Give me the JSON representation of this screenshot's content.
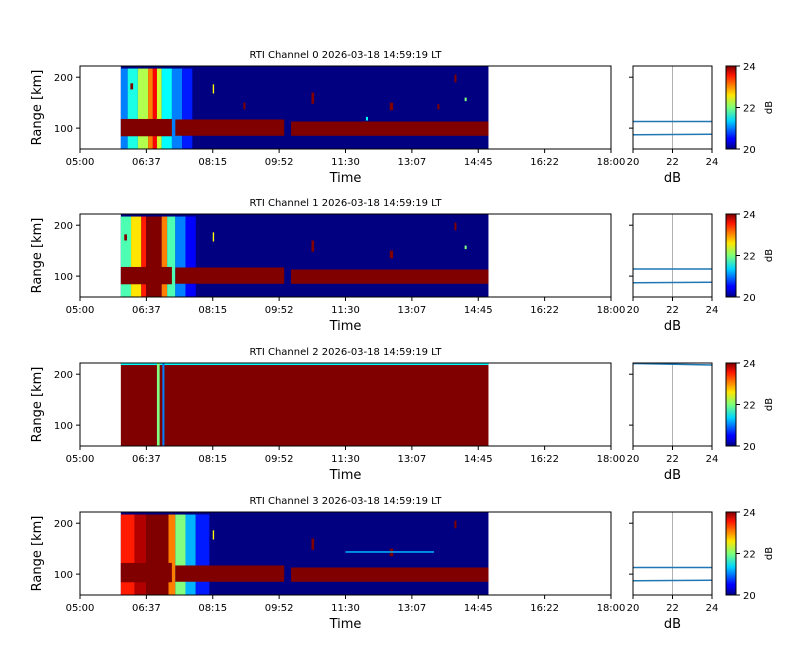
{
  "chart_data": {
    "type": "heatmap",
    "colormap": "jet",
    "clim": [
      20,
      24
    ],
    "background_color": "#ffffff",
    "x_ticks": [
      "05:00",
      "06:37",
      "08:15",
      "09:52",
      "11:30",
      "13:07",
      "14:45",
      "16:22",
      "18:00"
    ],
    "xlim": [
      "05:00",
      "18:00"
    ],
    "ylim": [
      59,
      222
    ],
    "y_ticks": [
      100,
      200
    ],
    "xlabel": "Time",
    "ylabel": "Range [km]",
    "profile_xlabel": "dB",
    "profile_xlim": [
      20,
      24
    ],
    "profile_x_ticks": [
      20,
      22,
      24
    ],
    "profile_grid_at": 22,
    "profile_line_color": "#1f77b4",
    "colorbar_ticks": [
      20,
      22,
      24
    ],
    "colorbar_label": "dB",
    "panels": [
      {
        "title": "RTI Channel 0 2026-03-18 14:59:19 LT",
        "data_extent": [
          "06:00",
          "15:00"
        ],
        "base_value": 20,
        "cells": [
          [
            "06:00",
            "06:10",
            59,
            217,
            21.0
          ],
          [
            "06:10",
            "06:25",
            59,
            217,
            21.6
          ],
          [
            "06:25",
            "06:40",
            59,
            217,
            22.2
          ],
          [
            "06:40",
            "06:47",
            59,
            217,
            23.0
          ],
          [
            "06:47",
            "06:53",
            59,
            217,
            23.5
          ],
          [
            "06:53",
            "07:00",
            59,
            217,
            22.3
          ],
          [
            "07:00",
            "07:15",
            59,
            217,
            21.5
          ],
          [
            "07:15",
            "07:30",
            59,
            217,
            21.0
          ],
          [
            "07:30",
            "07:45",
            59,
            217,
            20.6
          ],
          [
            "06:00",
            "07:15",
            84,
            118,
            24
          ],
          [
            "07:20",
            "10:00",
            85,
            117,
            24
          ],
          [
            "10:10",
            "15:00",
            85,
            113,
            24
          ],
          [
            "06:14",
            "06:18",
            176,
            188,
            24
          ],
          [
            "08:15",
            "08:17",
            168,
            186,
            22.5
          ],
          [
            "09:00",
            "09:03",
            137,
            150,
            24
          ],
          [
            "10:40",
            "10:44",
            148,
            170,
            24
          ],
          [
            "12:35",
            "12:40",
            135,
            150,
            24
          ],
          [
            "14:10",
            "14:13",
            190,
            205,
            24
          ],
          [
            "14:25",
            "14:28",
            153,
            160,
            22
          ],
          [
            "13:45",
            "13:48",
            137,
            147,
            24
          ],
          [
            "12:00",
            "12:03",
            115,
            122,
            21.5
          ]
        ],
        "profiles": [
          {
            "db": [
              20,
              24
            ],
            "range": [
              113,
              113
            ]
          },
          {
            "db": [
              20,
              24
            ],
            "range": [
              87,
              88
            ]
          }
        ]
      },
      {
        "title": "RTI Channel 1 2026-03-18 14:59:19 LT",
        "data_extent": [
          "06:00",
          "15:00"
        ],
        "base_value": 20,
        "cells": [
          [
            "06:00",
            "06:15",
            59,
            217,
            21.8
          ],
          [
            "06:15",
            "06:30",
            59,
            217,
            22.6
          ],
          [
            "06:30",
            "06:37",
            59,
            217,
            23.4
          ],
          [
            "06:37",
            "07:00",
            59,
            217,
            24
          ],
          [
            "07:00",
            "07:08",
            59,
            217,
            23.0
          ],
          [
            "07:08",
            "07:20",
            59,
            217,
            21.8
          ],
          [
            "07:20",
            "07:35",
            59,
            217,
            21.0
          ],
          [
            "07:35",
            "07:50",
            59,
            217,
            20.5
          ],
          [
            "06:00",
            "07:15",
            84,
            118,
            24
          ],
          [
            "07:20",
            "10:00",
            85,
            117,
            24
          ],
          [
            "10:10",
            "15:00",
            85,
            113,
            24
          ],
          [
            "06:05",
            "06:09",
            170,
            182,
            24
          ],
          [
            "08:15",
            "08:17",
            168,
            186,
            22.5
          ],
          [
            "10:40",
            "10:44",
            148,
            170,
            24
          ],
          [
            "12:35",
            "12:40",
            135,
            150,
            24
          ],
          [
            "14:10",
            "14:13",
            190,
            205,
            24
          ],
          [
            "14:25",
            "14:28",
            153,
            160,
            22
          ]
        ],
        "profiles": [
          {
            "db": [
              20,
              24
            ],
            "range": [
              114,
              114
            ]
          },
          {
            "db": [
              20,
              24
            ],
            "range": [
              87,
              88
            ]
          }
        ]
      },
      {
        "title": "RTI Channel 2 2026-03-18 14:59:19 LT",
        "data_extent": [
          "06:00",
          "15:00"
        ],
        "base_value": 24,
        "cells": [
          [
            "06:00",
            "15:00",
            218,
            222,
            21.5
          ],
          [
            "06:53",
            "06:57",
            59,
            222,
            22
          ],
          [
            "07:01",
            "07:04",
            59,
            222,
            21
          ]
        ],
        "profiles": [
          {
            "db": [
              20,
              24
            ],
            "range": [
              221,
              218
            ]
          }
        ]
      },
      {
        "title": "RTI Channel 3 2026-03-18 14:59:19 LT",
        "data_extent": [
          "06:00",
          "15:00"
        ],
        "base_value": 20,
        "cells": [
          [
            "06:00",
            "06:20",
            59,
            217,
            23.4
          ],
          [
            "06:20",
            "06:37",
            59,
            217,
            23.8
          ],
          [
            "06:37",
            "07:10",
            59,
            217,
            24
          ],
          [
            "07:10",
            "07:20",
            59,
            217,
            23.0
          ],
          [
            "07:20",
            "07:35",
            59,
            217,
            22.0
          ],
          [
            "07:35",
            "07:50",
            59,
            217,
            21.2
          ],
          [
            "07:50",
            "08:10",
            59,
            217,
            20.6
          ],
          [
            "06:00",
            "07:15",
            84,
            122,
            24
          ],
          [
            "07:20",
            "10:00",
            85,
            117,
            24
          ],
          [
            "10:10",
            "15:00",
            85,
            113,
            24
          ],
          [
            "08:15",
            "08:17",
            168,
            186,
            22.5
          ],
          [
            "10:40",
            "10:44",
            148,
            170,
            24
          ],
          [
            "12:35",
            "12:40",
            135,
            150,
            24
          ],
          [
            "14:10",
            "14:13",
            190,
            205,
            24
          ],
          [
            "11:30",
            "13:40",
            142,
            145,
            21.2
          ]
        ],
        "profiles": [
          {
            "db": [
              20,
              24
            ],
            "range": [
              113,
              113
            ]
          },
          {
            "db": [
              20,
              24
            ],
            "range": [
              87,
              88
            ]
          }
        ]
      }
    ]
  }
}
